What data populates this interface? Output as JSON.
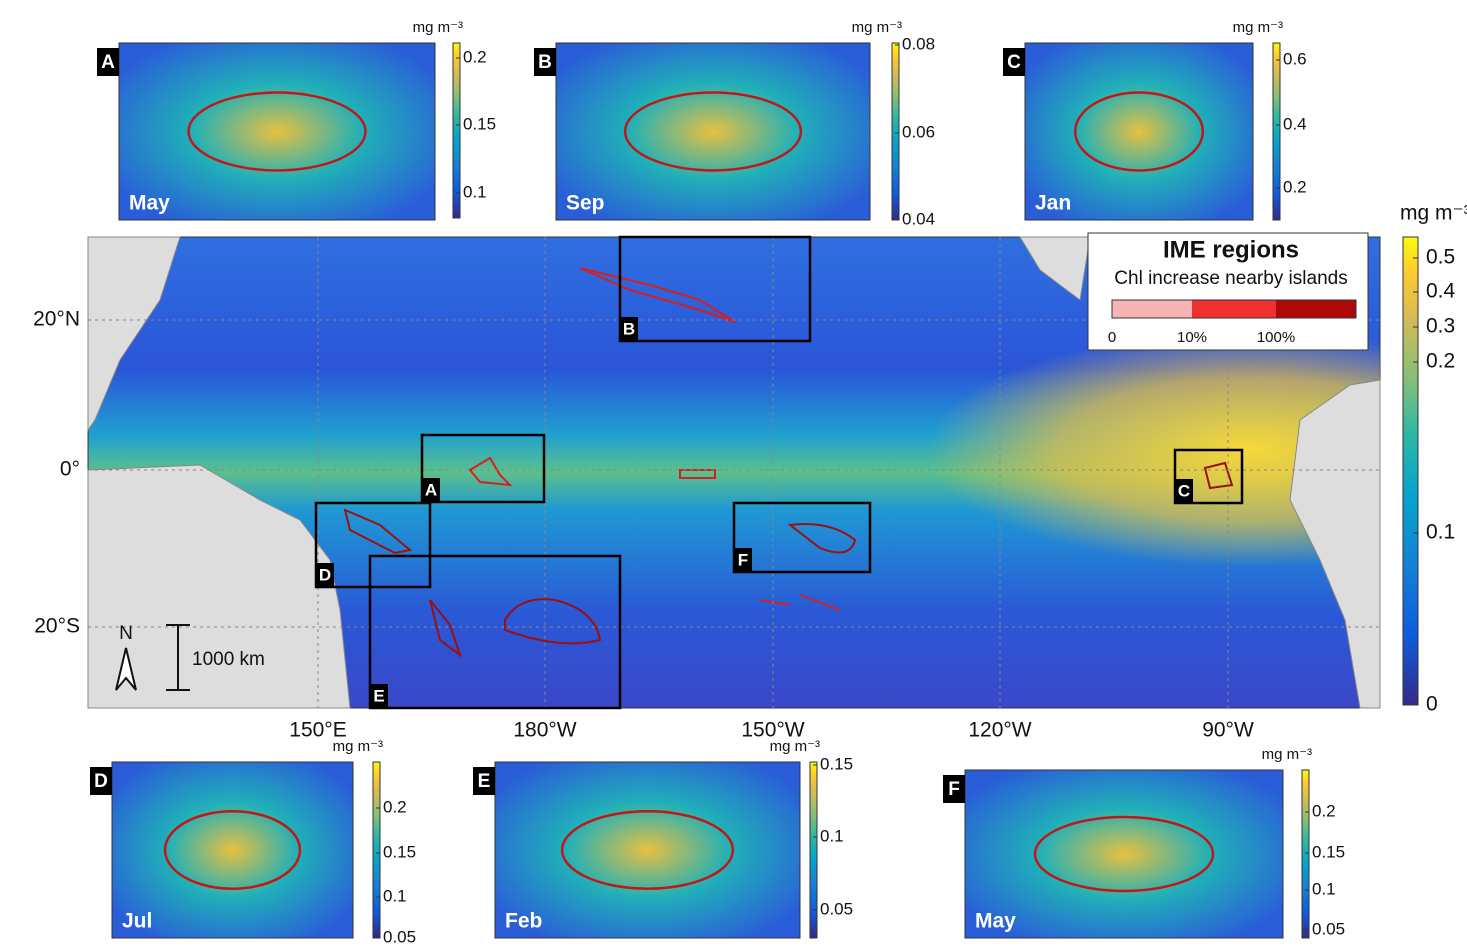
{
  "unit": "mg m⁻³",
  "main_map": {
    "x_ticks": [
      "150°E",
      "180°W",
      "150°W",
      "120°W",
      "90°W"
    ],
    "y_ticks": [
      "20°N",
      "0°",
      "20°S"
    ],
    "colorbar_ticks": [
      "0.5",
      "0.4",
      "0.3",
      "0.2",
      "0.1",
      "0"
    ],
    "north": "N",
    "scale_bar": "1000 km",
    "legend": {
      "title": "IME regions",
      "subtitle": "Chl increase nearby islands",
      "labels": [
        "0",
        "10%",
        "100%"
      ]
    }
  },
  "insets": [
    {
      "label": "A",
      "month": "May",
      "ticks": [
        "0.2",
        "0.15",
        "0.1"
      ]
    },
    {
      "label": "B",
      "month": "Sep",
      "ticks": [
        "0.08",
        "0.06",
        "0.04"
      ]
    },
    {
      "label": "C",
      "month": "Jan",
      "ticks": [
        "0.6",
        "0.4",
        "0.2"
      ]
    },
    {
      "label": "D",
      "month": "Jul",
      "ticks": [
        "0.2",
        "0.15",
        "0.1",
        "0.05"
      ]
    },
    {
      "label": "E",
      "month": "Feb",
      "ticks": [
        "0.15",
        "0.1",
        "0.05"
      ]
    },
    {
      "label": "F",
      "month": "May",
      "ticks": [
        "0.2",
        "0.15",
        "0.1",
        "0.05"
      ]
    }
  ]
}
